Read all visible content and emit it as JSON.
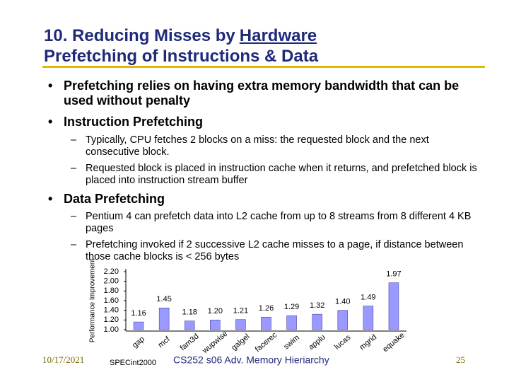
{
  "title": {
    "lines": [
      "10. Reducing Misses by",
      "Hardware",
      "Prefetching of Instructions & Data"
    ]
  },
  "bullets": [
    {
      "text": "Prefetching relies on having extra memory bandwidth that can be used without penalty"
    },
    {
      "text": "Instruction Prefetching",
      "sub": [
        "Typically, CPU fetches 2 blocks on a miss: the requested block and the next consecutive block.",
        "Requested block is placed in instruction cache when it returns, and prefetched block is placed into instruction stream buffer"
      ]
    },
    {
      "text": "Data Prefetching",
      "sub": [
        "Pentium 4 can prefetch data into L2 cache from up to 8 streams from 8 different 4 KB pages",
        "Prefetching invoked if 2 successive L2 cache misses to a page, if distance between those cache blocks is < 256 bytes"
      ]
    }
  ],
  "chart_data": {
    "type": "bar",
    "y_label": "Performance Improvement",
    "x_label": "SPECint2000",
    "categories": [
      "gap",
      "mcf",
      "fam3d",
      "wupwise",
      "galgel",
      "facerec",
      "swim",
      "applu",
      "lucas",
      "mgrid",
      "equake"
    ],
    "values": [
      1.16,
      1.45,
      1.18,
      1.2,
      1.21,
      1.26,
      1.29,
      1.32,
      1.4,
      1.49,
      1.97
    ],
    "value_labels": [
      "1.16",
      "1.45",
      "1.18",
      "1.20",
      "1.21",
      "1.26",
      "1.29",
      "1.32",
      "1.40",
      "1.49",
      "1.97"
    ],
    "color": "#9999ff",
    "ylim": [
      1,
      2.2
    ],
    "yticks": [
      {
        "value": 1,
        "label": "1.00"
      },
      {
        "value": 1.2,
        "label": "1.20"
      },
      {
        "value": 1.4,
        "label": "1.40"
      },
      {
        "value": 1.6,
        "label": "1.60"
      },
      {
        "value": 1.8,
        "label": "1.80"
      },
      {
        "value": 2,
        "label": "2.00"
      },
      {
        "value": 2.2,
        "label": "2.20"
      }
    ]
  },
  "footer": {
    "date": "10/17/2021",
    "course": "CS252 s06 Adv. Memory Hieriarchy",
    "page": "25"
  }
}
